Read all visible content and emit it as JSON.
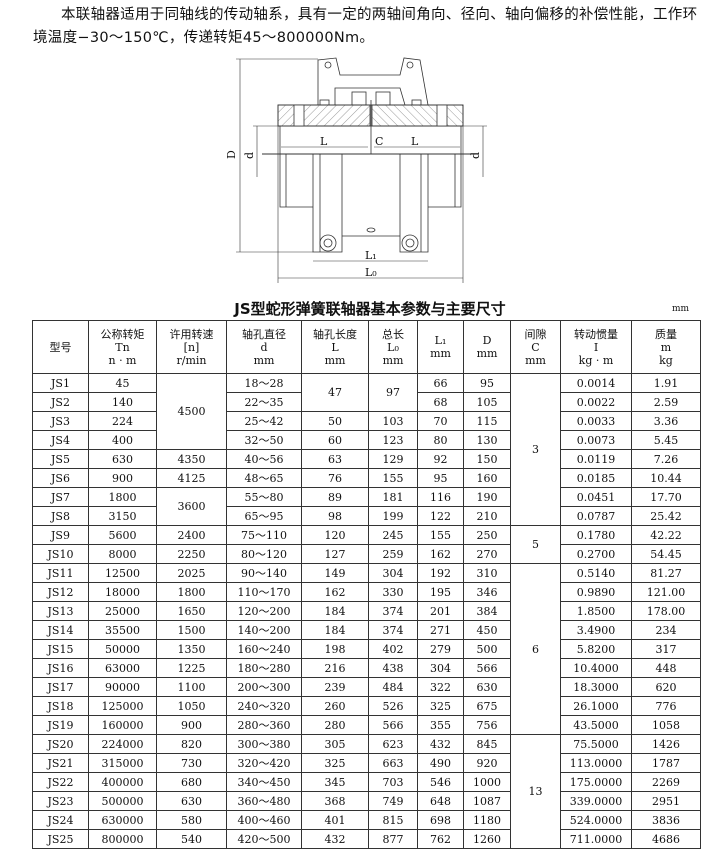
{
  "intro": "本联轴器适用于同轴线的传动轴系，具有一定的两轴间角向、径向、轴向偏移的补偿性能，工作环境温度−30～150℃，传递转矩45～800000Nm。",
  "drawing": {
    "D": "D",
    "d_left": "d",
    "d_right": "d",
    "L_left": "L",
    "C": "C",
    "L_right": "L",
    "L1": "L₁",
    "L0": "L₀"
  },
  "table_title": "JS型蛇形弹簧联轴器基本参数与主要尺寸",
  "unit": "mm",
  "headers": [
    [
      "型号"
    ],
    [
      "公称转矩",
      "Tn",
      "n · m"
    ],
    [
      "许用转速",
      "[n]",
      "r/min"
    ],
    [
      "轴孔直径",
      "d",
      "mm"
    ],
    [
      "轴孔长度",
      "L",
      "mm"
    ],
    [
      "总长",
      "L₀",
      "mm"
    ],
    [
      "L₁",
      "mm"
    ],
    [
      "D",
      "mm"
    ],
    [
      "间隙",
      "C",
      "mm"
    ],
    [
      "转动惯量",
      "I",
      "kg · m"
    ],
    [
      "质量",
      "m",
      "kg"
    ]
  ],
  "rows": [
    [
      "JS1",
      "45",
      "4500",
      "18～28",
      "47",
      "97",
      "66",
      "95",
      "3",
      "0.0014",
      "1.91"
    ],
    [
      "JS2",
      "140",
      null,
      "22～35",
      null,
      null,
      "68",
      "105",
      null,
      "0.0022",
      "2.59"
    ],
    [
      "JS3",
      "224",
      null,
      "25～42",
      "50",
      "103",
      "70",
      "115",
      null,
      "0.0033",
      "3.36"
    ],
    [
      "JS4",
      "400",
      null,
      "32～50",
      "60",
      "123",
      "80",
      "130",
      null,
      "0.0073",
      "5.45"
    ],
    [
      "JS5",
      "630",
      "4350",
      "40～56",
      "63",
      "129",
      "92",
      "150",
      null,
      "0.0119",
      "7.26"
    ],
    [
      "JS6",
      "900",
      "4125",
      "48～65",
      "76",
      "155",
      "95",
      "160",
      null,
      "0.0185",
      "10.44"
    ],
    [
      "JS7",
      "1800",
      "3600",
      "55～80",
      "89",
      "181",
      "116",
      "190",
      null,
      "0.0451",
      "17.70"
    ],
    [
      "JS8",
      "3150",
      null,
      "65～95",
      "98",
      "199",
      "122",
      "210",
      null,
      "0.0787",
      "25.42"
    ],
    [
      "JS9",
      "5600",
      "2400",
      "75～110",
      "120",
      "245",
      "155",
      "250",
      "5",
      "0.1780",
      "42.22"
    ],
    [
      "JS10",
      "8000",
      "2250",
      "80～120",
      "127",
      "259",
      "162",
      "270",
      null,
      "0.2700",
      "54.45"
    ],
    [
      "JS11",
      "12500",
      "2025",
      "90～140",
      "149",
      "304",
      "192",
      "310",
      "6",
      "0.5140",
      "81.27"
    ],
    [
      "JS12",
      "18000",
      "1800",
      "110～170",
      "162",
      "330",
      "195",
      "346",
      null,
      "0.9890",
      "121.00"
    ],
    [
      "JS13",
      "25000",
      "1650",
      "120～200",
      "184",
      "374",
      "201",
      "384",
      null,
      "1.8500",
      "178.00"
    ],
    [
      "JS14",
      "35500",
      "1500",
      "140～200",
      "184",
      "374",
      "271",
      "450",
      null,
      "3.4900",
      "234"
    ],
    [
      "JS15",
      "50000",
      "1350",
      "160～240",
      "198",
      "402",
      "279",
      "500",
      null,
      "5.8200",
      "317"
    ],
    [
      "JS16",
      "63000",
      "1225",
      "180～280",
      "216",
      "438",
      "304",
      "566",
      null,
      "10.4000",
      "448"
    ],
    [
      "JS17",
      "90000",
      "1100",
      "200～300",
      "239",
      "484",
      "322",
      "630",
      null,
      "18.3000",
      "620"
    ],
    [
      "JS18",
      "125000",
      "1050",
      "240～320",
      "260",
      "526",
      "325",
      "675",
      null,
      "26.1000",
      "776"
    ],
    [
      "JS19",
      "160000",
      "900",
      "280～360",
      "280",
      "566",
      "355",
      "756",
      null,
      "43.5000",
      "1058"
    ],
    [
      "JS20",
      "224000",
      "820",
      "300～380",
      "305",
      "623",
      "432",
      "845",
      "13",
      "75.5000",
      "1426"
    ],
    [
      "JS21",
      "315000",
      "730",
      "320～420",
      "325",
      "663",
      "490",
      "920",
      null,
      "113.0000",
      "1787"
    ],
    [
      "JS22",
      "400000",
      "680",
      "340～450",
      "345",
      "703",
      "546",
      "1000",
      null,
      "175.0000",
      "2269"
    ],
    [
      "JS23",
      "500000",
      "630",
      "360～480",
      "368",
      "749",
      "648",
      "1087",
      null,
      "339.0000",
      "2951"
    ],
    [
      "JS24",
      "630000",
      "580",
      "400～460",
      "401",
      "815",
      "698",
      "1180",
      null,
      "524.0000",
      "3836"
    ],
    [
      "JS25",
      "800000",
      "540",
      "420～500",
      "432",
      "877",
      "762",
      "1260",
      null,
      "711.0000",
      "4686"
    ]
  ]
}
